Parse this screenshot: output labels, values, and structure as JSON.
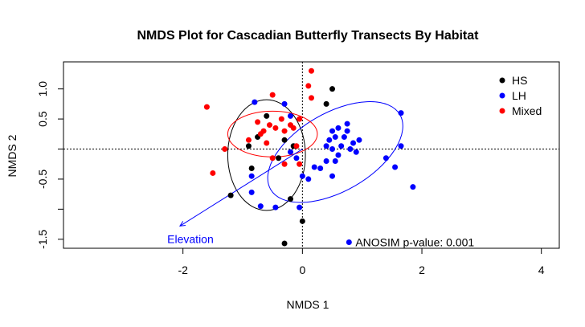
{
  "chart_data": {
    "type": "scatter",
    "title": "NMDS Plot for Cascadian Butterfly Transects By Habitat",
    "xlabel": "NMDS 1",
    "ylabel": "NMDS 2",
    "xlim": [
      -4.0,
      4.3
    ],
    "ylim": [
      -1.65,
      1.45
    ],
    "xticks": [
      {
        "value": -2,
        "label": "-2"
      },
      {
        "value": 0,
        "label": "0"
      },
      {
        "value": 2,
        "label": "2"
      },
      {
        "value": 4,
        "label": "4"
      }
    ],
    "yticks": [
      {
        "value": -1.5,
        "label": "-1.5"
      },
      {
        "value": -1.0,
        "label": ""
      },
      {
        "value": -0.5,
        "label": "-0.5"
      },
      {
        "value": 0,
        "label": ""
      },
      {
        "value": 0.5,
        "label": "0.5"
      },
      {
        "value": 1.0,
        "label": "1.0"
      }
    ],
    "reference_lines": {
      "x": 0,
      "y": 0,
      "style": "dotted"
    },
    "legend": {
      "position": "top-right"
    },
    "series": [
      {
        "name": "HS",
        "color": "#000000",
        "points": [
          [
            -0.6,
            0.55
          ],
          [
            0.5,
            1.0
          ],
          [
            0.4,
            0.75
          ],
          [
            -0.75,
            0.2
          ],
          [
            -0.3,
            0.15
          ],
          [
            -0.4,
            -0.15
          ],
          [
            -0.85,
            -0.32
          ],
          [
            -1.2,
            -0.77
          ],
          [
            -0.2,
            -0.83
          ],
          [
            0.0,
            -1.2
          ],
          [
            -0.3,
            -1.57
          ],
          [
            -0.9,
            0.05
          ],
          [
            -0.15,
            0.05
          ]
        ]
      },
      {
        "name": "LH",
        "color": "#0000ff",
        "points": [
          [
            -0.8,
            0.78
          ],
          [
            -0.3,
            0.75
          ],
          [
            -0.2,
            0.55
          ],
          [
            -0.1,
            -0.15
          ],
          [
            -0.85,
            -0.45
          ],
          [
            -0.85,
            -0.72
          ],
          [
            -0.7,
            -0.95
          ],
          [
            -0.45,
            -0.97
          ],
          [
            -0.05,
            -0.97
          ],
          [
            0.0,
            -0.45
          ],
          [
            0.1,
            -0.5
          ],
          [
            0.2,
            -0.3
          ],
          [
            0.3,
            -0.32
          ],
          [
            0.4,
            -0.2
          ],
          [
            0.5,
            -0.45
          ],
          [
            0.5,
            0.0
          ],
          [
            0.45,
            0.15
          ],
          [
            0.5,
            0.3
          ],
          [
            0.55,
            0.2
          ],
          [
            0.6,
            0.35
          ],
          [
            0.65,
            0.05
          ],
          [
            0.7,
            0.2
          ],
          [
            0.75,
            0.3
          ],
          [
            0.8,
            0.0
          ],
          [
            0.85,
            0.1
          ],
          [
            0.9,
            -0.05
          ],
          [
            0.95,
            0.15
          ],
          [
            0.75,
            0.42
          ],
          [
            0.6,
            -0.1
          ],
          [
            0.4,
            0.05
          ],
          [
            0.55,
            -0.2
          ],
          [
            1.4,
            -0.15
          ],
          [
            1.55,
            -0.3
          ],
          [
            1.65,
            0.05
          ],
          [
            1.65,
            0.6
          ],
          [
            1.85,
            -0.63
          ],
          [
            -0.2,
            -0.05
          ]
        ]
      },
      {
        "name": "Mixed",
        "color": "#ff0000",
        "points": [
          [
            -1.6,
            0.7
          ],
          [
            -0.75,
            0.45
          ],
          [
            -0.65,
            0.3
          ],
          [
            -0.55,
            0.4
          ],
          [
            -0.45,
            0.35
          ],
          [
            -0.35,
            0.5
          ],
          [
            -0.3,
            0.3
          ],
          [
            -0.2,
            0.4
          ],
          [
            -0.15,
            0.35
          ],
          [
            -0.1,
            0.05
          ],
          [
            -0.6,
            0.1
          ],
          [
            -0.7,
            0.25
          ],
          [
            -0.9,
            0.15
          ],
          [
            -1.3,
            0.0
          ],
          [
            -1.5,
            -0.4
          ],
          [
            -0.5,
            -0.15
          ],
          [
            -0.3,
            -0.25
          ],
          [
            -0.05,
            -0.25
          ],
          [
            -0.05,
            0.5
          ],
          [
            0.1,
            1.05
          ],
          [
            0.15,
            1.3
          ],
          [
            -0.5,
            0.9
          ],
          [
            0.15,
            0.85
          ]
        ]
      }
    ],
    "ellipses": [
      {
        "series": "HS",
        "color": "#000000",
        "cx": -0.6,
        "cy": -0.1,
        "rx": 0.65,
        "ry": 0.92,
        "rotation_deg": 0
      },
      {
        "series": "LH",
        "color": "#0000ff",
        "cx": 0.55,
        "cy": -0.05,
        "rx": 1.25,
        "ry": 0.65,
        "rotation_deg": 30
      },
      {
        "series": "Mixed",
        "color": "#ff0000",
        "cx": -0.5,
        "cy": 0.25,
        "rx": 0.75,
        "ry": 0.38,
        "rotation_deg": 0
      }
    ],
    "vector": {
      "label": "Elevation",
      "color": "#0000ff",
      "from": [
        0,
        0
      ],
      "to": [
        -2.05,
        -1.28
      ]
    },
    "annotation": {
      "text": "ANOSIM p-value:  0.001",
      "marker_color": "#0000ff",
      "x": 0.78,
      "y": -1.55
    }
  }
}
